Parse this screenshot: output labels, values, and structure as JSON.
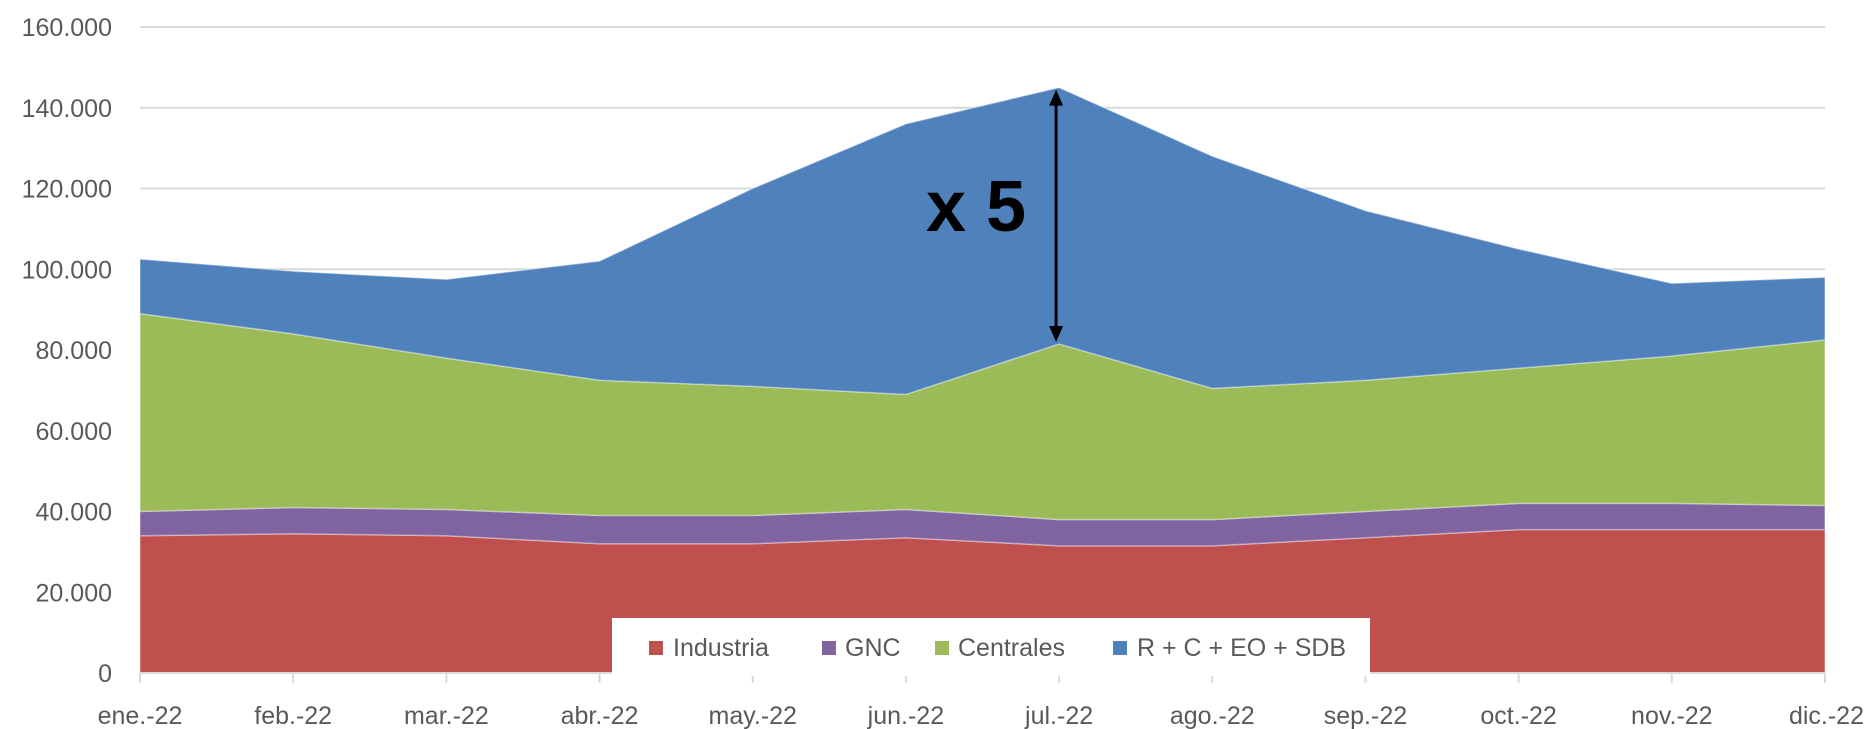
{
  "chart_data": {
    "type": "area",
    "stacked": true,
    "categories": [
      "ene.-22",
      "feb.-22",
      "mar.-22",
      "abr.-22",
      "may.-22",
      "jun.-22",
      "jul.-22",
      "ago.-22",
      "sep.-22",
      "oct.-22",
      "nov.-22",
      "dic.-22"
    ],
    "series": [
      {
        "name": "Industria",
        "color": "#C0504D",
        "values": [
          34000,
          34500,
          34000,
          32000,
          32000,
          33500,
          31500,
          31500,
          33500,
          35500,
          35500,
          35500
        ]
      },
      {
        "name": "GNC",
        "color": "#8064A2",
        "values": [
          6000,
          6500,
          6500,
          7000,
          7000,
          7000,
          6500,
          6500,
          6500,
          6500,
          6500,
          6000
        ]
      },
      {
        "name": "Centrales",
        "color": "#9BBB59",
        "values": [
          49000,
          43000,
          37500,
          33500,
          32000,
          28500,
          43500,
          32500,
          32500,
          33500,
          36500,
          41000
        ]
      },
      {
        "name": "R + C + EO + SDB",
        "color": "#4F81BD",
        "values": [
          13500,
          15500,
          19500,
          29500,
          49000,
          67000,
          63500,
          57500,
          42000,
          29500,
          18000,
          15500
        ]
      }
    ],
    "ylim": [
      0,
      160000
    ],
    "yticks": [
      0,
      20000,
      40000,
      60000,
      80000,
      100000,
      120000,
      140000,
      160000
    ],
    "ytick_labels": [
      "0",
      "20.000",
      "40.000",
      "60.000",
      "80.000",
      "100.000",
      "120.000",
      "140.000",
      "160.000"
    ],
    "grid": true,
    "legend_position": "bottom-center",
    "annotation": {
      "text": "x 5",
      "category": "jul.-22",
      "from_value": 81500,
      "to_value": 145000
    }
  }
}
